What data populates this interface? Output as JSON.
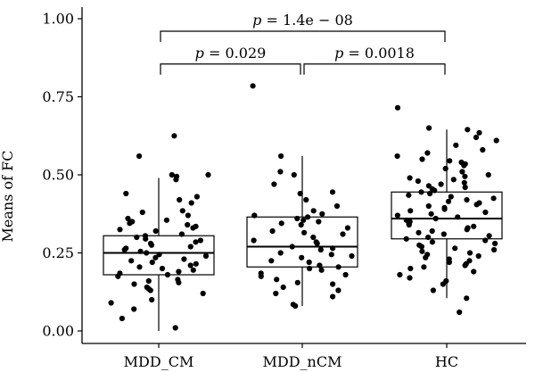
{
  "chart_data": {
    "type": "boxplot",
    "ylabel": "Means of FC",
    "xlabel": "",
    "ylim": [
      0.0,
      1.05
    ],
    "yticks": [
      "0.00",
      "0.25",
      "0.50",
      "0.75",
      "1.00"
    ],
    "categories": [
      "MDD_CM",
      "MDD_nCM",
      "HC"
    ],
    "boxes": [
      {
        "category": "MDD_CM",
        "whisker_low": 0.0,
        "q1": 0.18,
        "median": 0.25,
        "q3": 0.305,
        "whisker_high": 0.49
      },
      {
        "category": "MDD_nCM",
        "whisker_low": 0.08,
        "q1": 0.205,
        "median": 0.27,
        "q3": 0.365,
        "whisker_high": 0.56
      },
      {
        "category": "HC",
        "whisker_low": 0.105,
        "q1": 0.295,
        "median": 0.36,
        "q3": 0.445,
        "whisker_high": 0.645
      }
    ],
    "points": [
      {
        "category": "MDD_CM",
        "values": [
          0.625,
          0.56,
          0.5,
          0.5,
          0.495,
          0.485,
          0.44,
          0.43,
          0.42,
          0.41,
          0.385,
          0.38,
          0.37,
          0.36,
          0.355,
          0.35,
          0.345,
          0.34,
          0.335,
          0.33,
          0.325,
          0.32,
          0.31,
          0.305,
          0.3,
          0.295,
          0.29,
          0.285,
          0.28,
          0.275,
          0.27,
          0.265,
          0.26,
          0.255,
          0.25,
          0.245,
          0.24,
          0.235,
          0.23,
          0.225,
          0.22,
          0.215,
          0.21,
          0.205,
          0.2,
          0.195,
          0.19,
          0.185,
          0.18,
          0.175,
          0.165,
          0.16,
          0.155,
          0.15,
          0.14,
          0.135,
          0.13,
          0.12,
          0.1,
          0.09,
          0.07,
          0.04,
          0.01
        ]
      },
      {
        "category": "MDD_nCM",
        "values": [
          0.785,
          0.56,
          0.51,
          0.5,
          0.47,
          0.445,
          0.44,
          0.42,
          0.4,
          0.385,
          0.375,
          0.37,
          0.365,
          0.36,
          0.355,
          0.35,
          0.345,
          0.34,
          0.33,
          0.32,
          0.315,
          0.31,
          0.3,
          0.29,
          0.285,
          0.28,
          0.27,
          0.265,
          0.26,
          0.25,
          0.245,
          0.24,
          0.235,
          0.225,
          0.22,
          0.21,
          0.205,
          0.2,
          0.195,
          0.185,
          0.18,
          0.175,
          0.165,
          0.155,
          0.15,
          0.14,
          0.13,
          0.12,
          0.11,
          0.085,
          0.08
        ]
      },
      {
        "category": "HC",
        "values": [
          0.715,
          0.65,
          0.645,
          0.635,
          0.62,
          0.61,
          0.595,
          0.58,
          0.57,
          0.56,
          0.55,
          0.545,
          0.54,
          0.535,
          0.53,
          0.52,
          0.51,
          0.5,
          0.495,
          0.49,
          0.485,
          0.48,
          0.475,
          0.47,
          0.465,
          0.46,
          0.455,
          0.45,
          0.445,
          0.44,
          0.435,
          0.43,
          0.425,
          0.42,
          0.415,
          0.41,
          0.405,
          0.4,
          0.395,
          0.39,
          0.385,
          0.38,
          0.375,
          0.37,
          0.365,
          0.36,
          0.355,
          0.35,
          0.345,
          0.34,
          0.335,
          0.33,
          0.325,
          0.32,
          0.315,
          0.31,
          0.305,
          0.3,
          0.295,
          0.29,
          0.285,
          0.28,
          0.275,
          0.27,
          0.265,
          0.26,
          0.255,
          0.25,
          0.245,
          0.24,
          0.235,
          0.23,
          0.225,
          0.22,
          0.215,
          0.21,
          0.205,
          0.2,
          0.19,
          0.18,
          0.17,
          0.16,
          0.15,
          0.13,
          0.105,
          0.06
        ]
      }
    ],
    "annotations": [
      {
        "from": "MDD_CM",
        "to": "MDD_nCM",
        "label": "p = 0.029",
        "level": 0.855
      },
      {
        "from": "MDD_nCM",
        "to": "HC",
        "label": "p = 0.0018",
        "level": 0.855
      },
      {
        "from": "MDD_CM",
        "to": "HC",
        "label": "p = 1.4e − 08",
        "level": 0.96
      }
    ]
  }
}
